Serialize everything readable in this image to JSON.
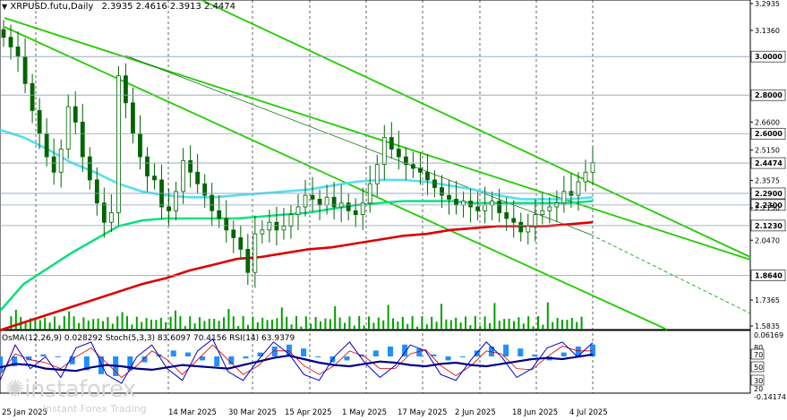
{
  "header": {
    "symbol": "XRPUSD.futu,Daily",
    "ohlc": "2.3935 2.4616 2.3913 2.4474",
    "indicators": "OsMA(12,26,9) 0.028292  Stoch(5,3,3) 83.6097 70.4156  RSI(14) 63.9379"
  },
  "brand": {
    "name": "instaforex",
    "tagline": "Instant Forex Trading"
  },
  "colors": {
    "candle": "#006400",
    "ma_fast": "#55dff0",
    "ma_mid": "#00e07a",
    "ma_slow": "#dd0000",
    "channel": "#22cc00",
    "osma": "#1e90ff",
    "stoch_main": "#0000cc",
    "stoch_signal": "#cc0000",
    "rsi": "#000088"
  },
  "chart_data": [
    {
      "type": "candlestick",
      "ylim": [
        1.5835,
        3.2935
      ],
      "price_ticks": [
        "3.2935",
        "3.1360",
        "3.0000",
        "2.8000",
        "2.6600",
        "2.6000",
        "2.5150",
        "2.4474",
        "2.3575",
        "2.2900",
        "2.2300",
        "2.2150",
        "2.1230",
        "2.0470",
        "1.8640",
        "1.7365",
        "1.5835"
      ],
      "highlighted_levels": [
        "3.0000",
        "2.8000",
        "2.6000",
        "2.4474",
        "2.2900",
        "2.2300",
        "2.1230",
        "1.8640"
      ],
      "x_labels": [
        "25 Jan 2025",
        "...",
        "14 Mar 2025",
        "30 Mar 2025",
        "15 Apr 2025",
        "1 May 2025",
        "17 May 2025",
        "2 Jun 2025",
        "18 Jun 2025",
        "4 Jul 2025"
      ],
      "closes": [
        3.1,
        3.05,
        3.0,
        2.86,
        2.72,
        2.6,
        2.48,
        2.4,
        2.52,
        2.74,
        2.66,
        2.48,
        2.36,
        2.24,
        2.14,
        2.19,
        2.9,
        2.76,
        2.6,
        2.48,
        2.38,
        2.36,
        2.22,
        2.2,
        2.3,
        2.46,
        2.4,
        2.34,
        2.28,
        2.2,
        2.16,
        2.1,
        2.06,
        2.0,
        1.88,
        2.08,
        2.1,
        2.14,
        2.1,
        2.12,
        2.18,
        2.22,
        2.28,
        2.26,
        2.23,
        2.27,
        2.22,
        2.24,
        2.2,
        2.18,
        2.24,
        2.34,
        2.44,
        2.58,
        2.52,
        2.48,
        2.44,
        2.42,
        2.4,
        2.36,
        2.32,
        2.28,
        2.26,
        2.23,
        2.25,
        2.22,
        2.2,
        2.23,
        2.25,
        2.19,
        2.16,
        2.14,
        2.09,
        2.12,
        2.18,
        2.2,
        2.22,
        2.24,
        2.3,
        2.28,
        2.35,
        2.4,
        2.45
      ],
      "ma_fast": [
        2.62,
        2.58,
        2.52,
        2.45,
        2.4,
        2.34,
        2.3,
        2.28,
        2.27,
        2.27,
        2.28,
        2.29,
        2.3,
        2.31,
        2.33,
        2.35,
        2.36,
        2.36,
        2.35,
        2.33,
        2.31,
        2.28,
        2.26,
        2.26,
        2.26,
        2.27
      ],
      "ma_mid": [
        1.68,
        1.82,
        1.9,
        1.98,
        2.05,
        2.12,
        2.15,
        2.16,
        2.16,
        2.16,
        2.16,
        2.17,
        2.18,
        2.19,
        2.21,
        2.23,
        2.24,
        2.25,
        2.25,
        2.25,
        2.24,
        2.24,
        2.24,
        2.24,
        2.24,
        2.25
      ],
      "ma_slow": [
        1.58,
        1.62,
        1.66,
        1.7,
        1.74,
        1.78,
        1.82,
        1.85,
        1.89,
        1.92,
        1.95,
        1.96,
        1.98,
        2.0,
        2.01,
        2.03,
        2.05,
        2.07,
        2.08,
        2.1,
        2.11,
        2.12,
        2.12,
        2.12,
        2.13,
        2.14
      ]
    },
    {
      "type": "indicator",
      "axis_labels": [
        "0.06169",
        "80",
        "70",
        "50",
        "30",
        "20",
        "-0.14174"
      ],
      "osma": [
        -0.08,
        -0.05,
        -0.02,
        0.01,
        0.0,
        -0.04,
        -0.07,
        -0.09,
        -0.1,
        -0.07,
        -0.03,
        0.01,
        0.03,
        0.02,
        -0.02,
        -0.05,
        -0.04,
        -0.01,
        0.02,
        0.05,
        0.06,
        0.04,
        0.0,
        -0.03,
        -0.02,
        0.01,
        0.03,
        0.05,
        0.06,
        0.04,
        0.01,
        -0.02,
        0.0,
        0.03,
        0.05,
        0.06,
        0.04,
        0.01,
        -0.02,
        0.02,
        0.05,
        0.06
      ],
      "stoch_main": [
        20,
        80,
        40,
        60,
        25,
        75,
        85,
        30,
        15,
        60,
        80,
        40,
        20,
        70,
        90,
        35,
        20,
        55,
        85,
        65,
        30,
        20,
        60,
        85,
        50,
        25,
        45,
        80,
        70,
        30,
        20,
        55,
        85,
        60,
        25,
        40,
        75,
        85,
        60,
        84
      ],
      "stoch_signal": [
        30,
        65,
        55,
        50,
        40,
        60,
        75,
        50,
        25,
        45,
        70,
        55,
        30,
        55,
        80,
        55,
        30,
        45,
        70,
        70,
        45,
        30,
        45,
        70,
        60,
        40,
        40,
        65,
        72,
        45,
        28,
        45,
        70,
        65,
        40,
        38,
        60,
        78,
        70,
        70
      ],
      "rsi": [
        42,
        48,
        46,
        40,
        38,
        36,
        42,
        46,
        44,
        40,
        38,
        42,
        46,
        44,
        42,
        40,
        46,
        52,
        58,
        62,
        56,
        50,
        46,
        44,
        48,
        52,
        50,
        46,
        44,
        48,
        50,
        46,
        44,
        48,
        52,
        56,
        58,
        56,
        60,
        64
      ]
    }
  ]
}
